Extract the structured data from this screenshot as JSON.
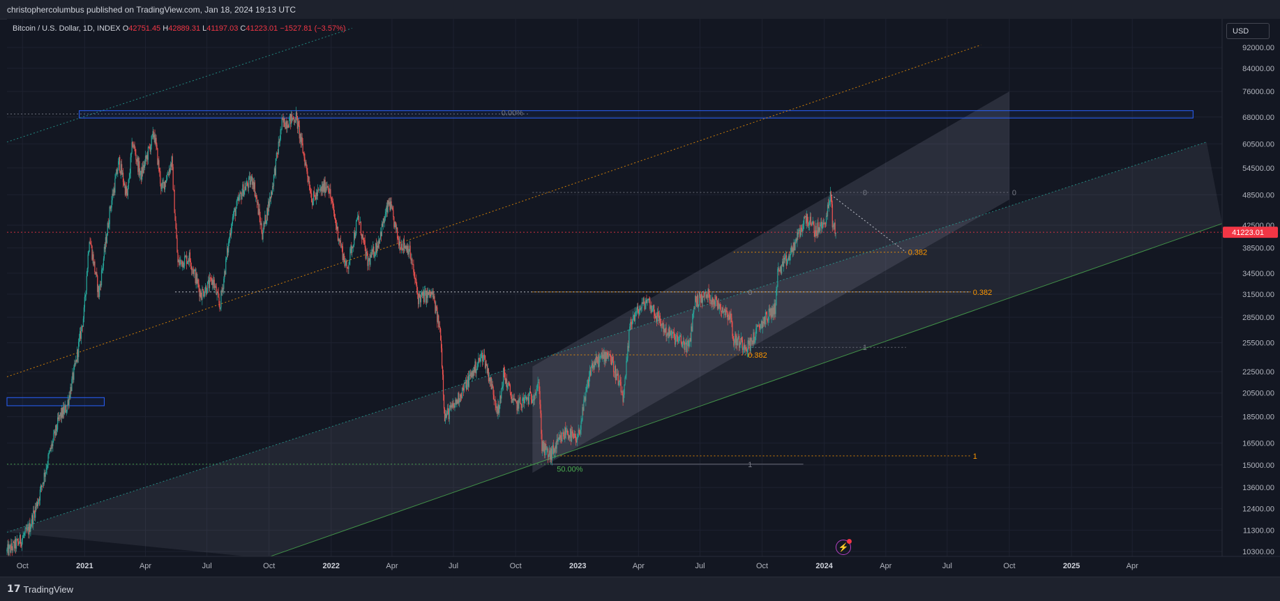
{
  "header": {
    "publish_text": "christophercolumbus published on TradingView.com, Jan 18, 2024 19:13 UTC"
  },
  "footer": {
    "logo_text": "TradingView",
    "logo_mark": "17"
  },
  "legend": {
    "symbol": "Bitcoin / U.S. Dollar, 1D, INDEX",
    "o_label": "O",
    "o_value": "42751.45",
    "h_label": "H",
    "h_value": "42889.31",
    "l_label": "L",
    "l_value": "41197.03",
    "c_label": "C",
    "c_value": "41223.01",
    "change": "−1527.81 (−3.57%)"
  },
  "currency_button": "USD",
  "chart_data": {
    "type": "candlestick",
    "symbol": "BTCUSD",
    "interval": "1D",
    "y_scale": "log",
    "ylim": [
      10000,
      100000
    ],
    "xlim": [
      "2020-09-08",
      "2025-08-12"
    ],
    "y_ticks": [
      {
        "v": 92000,
        "l": "92000.00"
      },
      {
        "v": 84000,
        "l": "84000.00"
      },
      {
        "v": 76000,
        "l": "76000.00"
      },
      {
        "v": 68000,
        "l": "68000.00"
      },
      {
        "v": 60500,
        "l": "60500.00"
      },
      {
        "v": 54500,
        "l": "54500.00"
      },
      {
        "v": 48500,
        "l": "48500.00"
      },
      {
        "v": 42500,
        "l": "42500.00"
      },
      {
        "v": 38500,
        "l": "38500.00"
      },
      {
        "v": 34500,
        "l": "34500.00"
      },
      {
        "v": 31500,
        "l": "31500.00"
      },
      {
        "v": 28500,
        "l": "28500.00"
      },
      {
        "v": 25500,
        "l": "25500.00"
      },
      {
        "v": 22500,
        "l": "22500.00"
      },
      {
        "v": 20500,
        "l": "20500.00"
      },
      {
        "v": 18500,
        "l": "18500.00"
      },
      {
        "v": 16500,
        "l": "16500.00"
      },
      {
        "v": 15000,
        "l": "15000.00"
      },
      {
        "v": 13600,
        "l": "13600.00"
      },
      {
        "v": 12400,
        "l": "12400.00"
      },
      {
        "v": 11300,
        "l": "11300.00"
      },
      {
        "v": 10300,
        "l": "10300.00"
      }
    ],
    "x_ticks": [
      {
        "d": "2020-10-01",
        "l": "Oct",
        "bold": false
      },
      {
        "d": "2021-01-01",
        "l": "2021",
        "bold": true
      },
      {
        "d": "2021-04-01",
        "l": "Apr",
        "bold": false
      },
      {
        "d": "2021-07-01",
        "l": "Jul",
        "bold": false
      },
      {
        "d": "2021-10-01",
        "l": "Oct",
        "bold": false
      },
      {
        "d": "2022-01-01",
        "l": "2022",
        "bold": true
      },
      {
        "d": "2022-04-01",
        "l": "Apr",
        "bold": false
      },
      {
        "d": "2022-07-01",
        "l": "Jul",
        "bold": false
      },
      {
        "d": "2022-10-01",
        "l": "Oct",
        "bold": false
      },
      {
        "d": "2023-01-01",
        "l": "2023",
        "bold": true
      },
      {
        "d": "2023-04-01",
        "l": "Apr",
        "bold": false
      },
      {
        "d": "2023-07-01",
        "l": "Jul",
        "bold": false
      },
      {
        "d": "2023-10-01",
        "l": "Oct",
        "bold": false
      },
      {
        "d": "2024-01-01",
        "l": "2024",
        "bold": true
      },
      {
        "d": "2024-04-01",
        "l": "Apr",
        "bold": false
      },
      {
        "d": "2024-07-01",
        "l": "Jul",
        "bold": false
      },
      {
        "d": "2024-10-01",
        "l": "Oct",
        "bold": false
      },
      {
        "d": "2025-01-01",
        "l": "2025",
        "bold": true
      },
      {
        "d": "2025-04-01",
        "l": "Apr",
        "bold": false
      }
    ],
    "last_price": 41223.01,
    "last_price_label": "41223.01",
    "price_path": [
      [
        "2020-09-08",
        10300
      ],
      [
        "2020-09-25",
        10700
      ],
      [
        "2020-10-10",
        11300
      ],
      [
        "2020-10-25",
        13000
      ],
      [
        "2020-11-08",
        15400
      ],
      [
        "2020-11-25",
        18500
      ],
      [
        "2020-12-05",
        19200
      ],
      [
        "2020-12-18",
        23000
      ],
      [
        "2020-12-31",
        29000
      ],
      [
        "2021-01-08",
        40500
      ],
      [
        "2021-01-22",
        31500
      ],
      [
        "2021-02-08",
        46000
      ],
      [
        "2021-02-21",
        56000
      ],
      [
        "2021-03-05",
        48000
      ],
      [
        "2021-03-13",
        61000
      ],
      [
        "2021-03-25",
        52500
      ],
      [
        "2021-04-14",
        63500
      ],
      [
        "2021-04-25",
        49500
      ],
      [
        "2021-05-10",
        56000
      ],
      [
        "2021-05-19",
        36000
      ],
      [
        "2021-06-05",
        37000
      ],
      [
        "2021-06-22",
        31500
      ],
      [
        "2021-07-10",
        33500
      ],
      [
        "2021-07-20",
        29800
      ],
      [
        "2021-08-07",
        43500
      ],
      [
        "2021-08-23",
        49500
      ],
      [
        "2021-09-07",
        52000
      ],
      [
        "2021-09-21",
        41000
      ],
      [
        "2021-10-05",
        49500
      ],
      [
        "2021-10-20",
        66000
      ],
      [
        "2021-11-10",
        68000
      ],
      [
        "2021-11-26",
        54000
      ],
      [
        "2021-12-04",
        47500
      ],
      [
        "2021-12-27",
        51000
      ],
      [
        "2022-01-10",
        41500
      ],
      [
        "2022-01-24",
        35000
      ],
      [
        "2022-02-10",
        44000
      ],
      [
        "2022-02-24",
        36000
      ],
      [
        "2022-03-10",
        39000
      ],
      [
        "2022-03-28",
        47000
      ],
      [
        "2022-04-11",
        39500
      ],
      [
        "2022-04-26",
        38500
      ],
      [
        "2022-05-10",
        31000
      ],
      [
        "2022-05-31",
        31500
      ],
      [
        "2022-06-12",
        26500
      ],
      [
        "2022-06-18",
        18500
      ],
      [
        "2022-07-01",
        19300
      ],
      [
        "2022-07-15",
        20800
      ],
      [
        "2022-08-14",
        24300
      ],
      [
        "2022-09-06",
        18800
      ],
      [
        "2022-09-13",
        22300
      ],
      [
        "2022-09-30",
        19400
      ],
      [
        "2022-10-25",
        20200
      ],
      [
        "2022-11-05",
        21200
      ],
      [
        "2022-11-09",
        16200
      ],
      [
        "2022-11-21",
        15600
      ],
      [
        "2022-12-15",
        17400
      ],
      [
        "2022-12-31",
        16550
      ],
      [
        "2023-01-21",
        23000
      ],
      [
        "2023-02-16",
        24500
      ],
      [
        "2023-03-10",
        20000
      ],
      [
        "2023-03-20",
        28000
      ],
      [
        "2023-04-14",
        30800
      ],
      [
        "2023-05-11",
        26800
      ],
      [
        "2023-06-15",
        25000
      ],
      [
        "2023-06-23",
        30500
      ],
      [
        "2023-07-13",
        31400
      ],
      [
        "2023-08-16",
        28600
      ],
      [
        "2023-08-18",
        26000
      ],
      [
        "2023-09-11",
        25100
      ],
      [
        "2023-10-02",
        28000
      ],
      [
        "2023-10-20",
        29600
      ],
      [
        "2023-10-24",
        34500
      ],
      [
        "2023-11-10",
        37000
      ],
      [
        "2023-12-05",
        44000
      ],
      [
        "2023-12-18",
        41500
      ],
      [
        "2023-12-31",
        42500
      ],
      [
        "2024-01-08",
        46500
      ],
      [
        "2024-01-11",
        48500
      ],
      [
        "2024-01-13",
        42800
      ],
      [
        "2024-01-18",
        41223
      ]
    ],
    "horizontal_lines": [
      {
        "y": 41223.01,
        "from": "2020-09-08",
        "to": "2025-08-12",
        "color": "#f23645",
        "style": "dotted"
      },
      {
        "y": 68900,
        "from": "2020-09-08",
        "to": "2022-10-20",
        "color": "#787b86",
        "style": "dotted"
      },
      {
        "y": 31800,
        "from": "2021-05-15",
        "to": "2024-08-05",
        "color": "#e0e3eb",
        "style": "dotted"
      },
      {
        "y": 31800,
        "from": "2022-10-26",
        "to": "2024-08-05",
        "color": "#ff9800",
        "style": "dotted"
      },
      {
        "y": 49000,
        "from": "2022-10-26",
        "to": "2024-10-01",
        "color": "#787b86",
        "style": "dotted"
      },
      {
        "y": 15050,
        "from": "2020-09-08",
        "to": "2022-11-21",
        "color": "#4caf50",
        "style": "dotted"
      },
      {
        "y": 15050,
        "from": "2022-11-21",
        "to": "2023-12-01",
        "color": "#787b86",
        "style": "solid"
      },
      {
        "y": 15600,
        "from": "2022-11-21",
        "to": "2024-08-05",
        "color": "#ff9800",
        "style": "dotted"
      },
      {
        "y": 37800,
        "from": "2023-08-20",
        "to": "2024-05-01",
        "color": "#ff9800",
        "style": "dotted"
      },
      {
        "y": 24200,
        "from": "2022-11-25",
        "to": "2023-09-25",
        "color": "#ff9800",
        "style": "dotted"
      },
      {
        "y": 25000,
        "from": "2023-09-05",
        "to": "2024-05-01",
        "color": "#787b86",
        "style": "dotted"
      }
    ],
    "trend_lines": [
      {
        "p1": [
          "2020-09-08",
          22000
        ],
        "p2": [
          "2024-08-20",
          93000
        ],
        "color": "#ff9800",
        "style": "dotted"
      },
      {
        "p1": [
          "2020-09-08",
          61000
        ],
        "p2": [
          "2022-02-01",
          100000
        ],
        "color": "#26a69a",
        "style": "dotted"
      },
      {
        "p1": [
          "2020-09-08",
          11200
        ],
        "p2": [
          "2025-07-20",
          61000
        ],
        "color": "#26a69a",
        "style": "dotted"
      },
      {
        "p1": [
          "2021-09-25",
          10000
        ],
        "p2": [
          "2025-08-12",
          42800
        ],
        "color": "#4caf50",
        "style": "solid"
      },
      {
        "p1": [
          "2024-01-11",
          48500
        ],
        "p2": [
          "2024-05-01",
          37800
        ],
        "color": "#e0e3eb",
        "style": "dotted"
      }
    ],
    "channels": [
      {
        "points": [
          [
            "2020-09-08",
            11200
          ],
          [
            "2025-07-20",
            61000
          ],
          [
            "2025-08-12",
            42800
          ],
          [
            "2021-09-25",
            10000
          ]
        ],
        "fill": "rgba(160,160,185,0.11)"
      },
      {
        "points": [
          [
            "2022-10-26",
            23000
          ],
          [
            "2024-10-01",
            76000
          ],
          [
            "2024-10-01",
            47500
          ],
          [
            "2022-10-26",
            14500
          ]
        ],
        "fill": "rgba(170,170,195,0.16)"
      }
    ],
    "rectangles": [
      {
        "x1": "2020-12-24",
        "x2": "2025-06-30",
        "y1": 67700,
        "y2": 69900,
        "color": "#2962ff"
      },
      {
        "x1": "2020-09-08",
        "x2": "2021-01-30",
        "y1": 19400,
        "y2": 20100,
        "color": "#2962ff"
      }
    ],
    "annotations": [
      {
        "text": "0.00%",
        "x": "2022-09-10",
        "y": 69300,
        "color": "#787b86"
      },
      {
        "text": "50.00%",
        "x": "2022-12-01",
        "y": 14750,
        "color": "#4caf50"
      },
      {
        "text": "0",
        "x": "2024-02-27",
        "y": 49000,
        "color": "#787b86"
      },
      {
        "text": "0",
        "x": "2024-10-05",
        "y": 49000,
        "color": "#787b86"
      },
      {
        "text": "0.382",
        "x": "2024-05-04",
        "y": 37800,
        "color": "#ff9800"
      },
      {
        "text": "0.382",
        "x": "2024-08-08",
        "y": 31800,
        "color": "#ff9800"
      },
      {
        "text": "0",
        "x": "2023-09-10",
        "y": 31800,
        "color": "#787b86"
      },
      {
        "text": "0.382",
        "x": "2023-09-10",
        "y": 24200,
        "color": "#ff9800"
      },
      {
        "text": "1",
        "x": "2024-02-27",
        "y": 25000,
        "color": "#787b86"
      },
      {
        "text": "1",
        "x": "2024-08-08",
        "y": 15600,
        "color": "#ff9800"
      },
      {
        "text": "1",
        "x": "2023-09-10",
        "y": 15050,
        "color": "#787b86"
      }
    ],
    "colors": {
      "up": "#26a69a",
      "down": "#ef5350",
      "grid": "#1e2230",
      "axis_text": "#b2b5be"
    }
  }
}
